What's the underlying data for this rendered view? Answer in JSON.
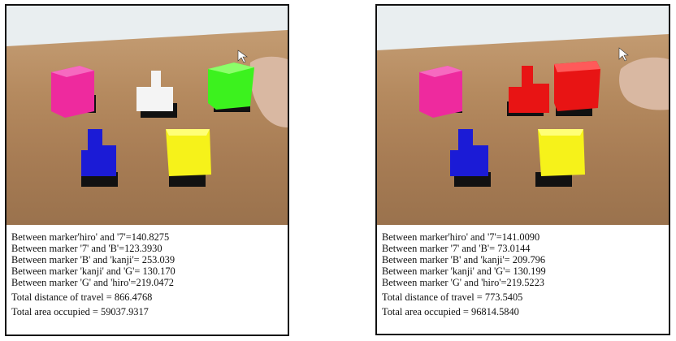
{
  "panels": [
    {
      "lines": [
        "Between marker'hiro' and '7'=140.8275",
        "Between marker '7' and 'B'=123.3930",
        "Between marker 'B' and 'kanji'= 253.039",
        "Between marker 'kanji' and 'G'= 130.170",
        "Between marker 'G' and 'hiro'=219.0472"
      ],
      "total_distance": "Total distance of travel = 866.4768",
      "total_area": "Total area occupied = 59037.9317"
    },
    {
      "lines": [
        "Between marker'hiro' and '7'=141.0090",
        "Between marker '7' and 'B'= 73.0144",
        "Between marker 'B' and 'kanji'= 209.796",
        "Between marker 'kanji' and 'G'= 130.199",
        "Between marker 'G' and 'hiro'=219.5223"
      ],
      "total_distance": "Total distance of travel = 773.5405",
      "total_area": "Total area occupied = 96814.5840"
    }
  ],
  "colors": {
    "magenta": "#ee2a9e",
    "white": "#f4f4f4",
    "green": "#3cf21e",
    "blue": "#1b1bd6",
    "yellow": "#f6f21a",
    "red": "#e81414",
    "desk": "#b58a5f"
  }
}
